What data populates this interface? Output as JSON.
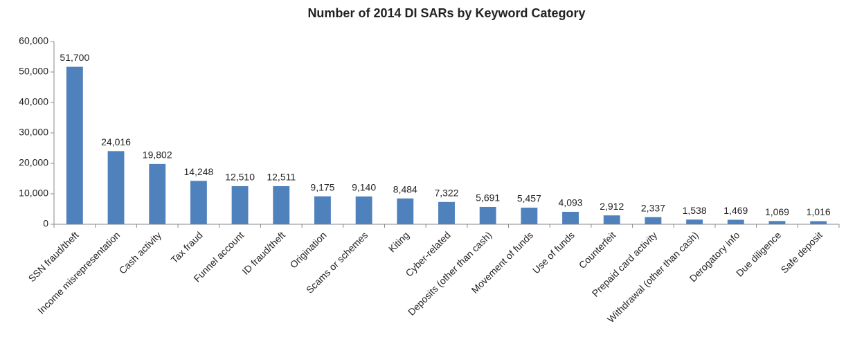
{
  "chart_data": {
    "type": "bar",
    "title": "Number of 2014 DI SARs by Keyword Category",
    "categories": [
      "SSN fraud/theft",
      "Income misrepresentation",
      "Cash activity",
      "Tax fraud",
      "Funnel account",
      "ID fraud/theft",
      "Origination",
      "Scams or schemes",
      "Kiting",
      "Cyber-related",
      "Deposits (other than cash)",
      "Movement of funds",
      "Use of funds",
      "Counterfeit",
      "Prepaid card activity",
      "Withdrawal (other than cash)",
      "Derogatory info",
      "Due diligence",
      "Safe deposit"
    ],
    "values": [
      51700,
      24016,
      19802,
      14248,
      12510,
      12511,
      9175,
      9140,
      8484,
      7322,
      5691,
      5457,
      4093,
      2912,
      2337,
      1538,
      1469,
      1069,
      1016
    ],
    "value_labels": [
      "51,700",
      "24,016",
      "19,802",
      "14,248",
      "12,510",
      "12,511",
      "9,175",
      "9,140",
      "8,484",
      "7,322",
      "5,691",
      "5,457",
      "4,093",
      "2,912",
      "2,337",
      "1,538",
      "1,469",
      "1,069",
      "1,016"
    ],
    "color": "#4f81bd",
    "ylim": [
      0,
      60000
    ],
    "yticks": [
      0,
      {
        "value": 10000,
        "label": "10,000"
      },
      {
        "value": 20000,
        "label": "20,000"
      },
      {
        "value": 30000,
        "label": "30,000"
      },
      {
        "value": 40000,
        "label": "40,000"
      },
      {
        "value": 50000,
        "label": "50,000"
      },
      {
        "value": 60000,
        "label": "60,000"
      }
    ],
    "grid": false
  }
}
